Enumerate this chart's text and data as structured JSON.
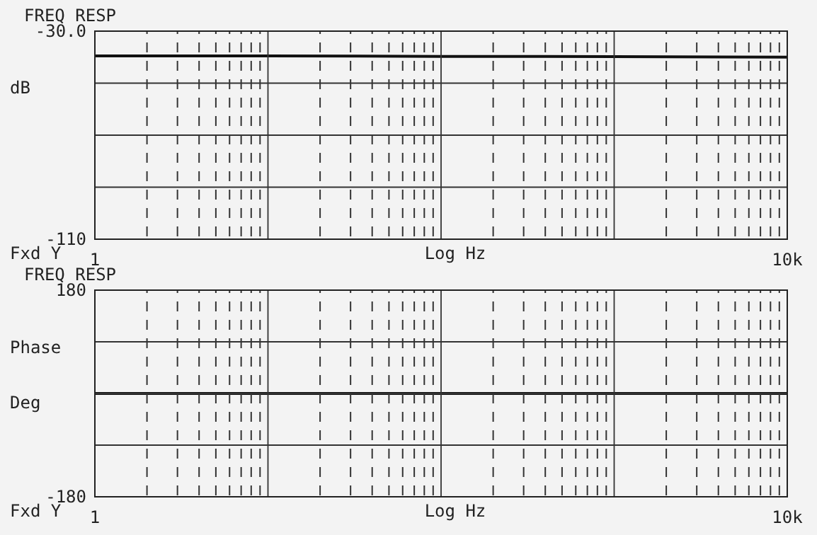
{
  "chart_data": [
    {
      "type": "line",
      "title": "FREQ RESP",
      "ylabel": "dB",
      "xlabel": "Log Hz",
      "annotations": [
        "Fxd Y"
      ],
      "log": "x",
      "grid": true,
      "line_style": "solid",
      "marker": "none",
      "xlim": [
        1,
        10000
      ],
      "xticks": [
        {
          "value": 1,
          "label": "1"
        },
        {
          "value": 2,
          "label": null
        },
        {
          "value": 3,
          "label": null
        },
        {
          "value": 4,
          "label": null
        },
        {
          "value": 5,
          "label": null
        },
        {
          "value": 6,
          "label": null
        },
        {
          "value": 7,
          "label": null
        },
        {
          "value": 8,
          "label": null
        },
        {
          "value": 9,
          "label": null
        },
        {
          "value": 10,
          "label": null
        },
        {
          "value": 20,
          "label": null
        },
        {
          "value": 30,
          "label": null
        },
        {
          "value": 40,
          "label": null
        },
        {
          "value": 50,
          "label": null
        },
        {
          "value": 60,
          "label": null
        },
        {
          "value": 70,
          "label": null
        },
        {
          "value": 80,
          "label": null
        },
        {
          "value": 90,
          "label": null
        },
        {
          "value": 100,
          "label": null
        },
        {
          "value": 200,
          "label": null
        },
        {
          "value": 300,
          "label": null
        },
        {
          "value": 400,
          "label": null
        },
        {
          "value": 500,
          "label": null
        },
        {
          "value": 600,
          "label": null
        },
        {
          "value": 700,
          "label": null
        },
        {
          "value": 800,
          "label": null
        },
        {
          "value": 900,
          "label": null
        },
        {
          "value": 1000,
          "label": null
        },
        {
          "value": 2000,
          "label": null
        },
        {
          "value": 3000,
          "label": null
        },
        {
          "value": 4000,
          "label": null
        },
        {
          "value": 5000,
          "label": null
        },
        {
          "value": 6000,
          "label": null
        },
        {
          "value": 7000,
          "label": null
        },
        {
          "value": 8000,
          "label": null
        },
        {
          "value": 9000,
          "label": null
        },
        {
          "value": 10000,
          "label": "10k"
        }
      ],
      "ylim": [
        -110,
        -30
      ],
      "yticks": [
        {
          "value": -30,
          "label": "-30.0"
        },
        {
          "value": -50,
          "label": null
        },
        {
          "value": -70,
          "label": null
        },
        {
          "value": -90,
          "label": null
        },
        -110
      ],
      "x": [
        1,
        10,
        100,
        1000,
        10000
      ],
      "series": [
        {
          "color": "#111111",
          "values": [
            -39.5,
            -39.5,
            -39.7,
            -39.8,
            -40
          ]
        }
      ]
    },
    {
      "type": "line",
      "title": "FREQ RESP",
      "ylabel": "Phase Deg",
      "xlabel": "Log Hz",
      "annotations": [
        "Fxd Y"
      ],
      "log": "x",
      "grid": true,
      "line_style": "solid",
      "marker": "none",
      "xlim": [
        1,
        10000
      ],
      "xticks": [
        {
          "value": 1,
          "label": "1"
        },
        {
          "value": 2,
          "label": null
        },
        {
          "value": 3,
          "label": null
        },
        {
          "value": 4,
          "label": null
        },
        {
          "value": 5,
          "label": null
        },
        {
          "value": 6,
          "label": null
        },
        {
          "value": 7,
          "label": null
        },
        {
          "value": 8,
          "label": null
        },
        {
          "value": 9,
          "label": null
        },
        {
          "value": 10,
          "label": null
        },
        {
          "value": 20,
          "label": null
        },
        {
          "value": 30,
          "label": null
        },
        {
          "value": 40,
          "label": null
        },
        {
          "value": 50,
          "label": null
        },
        {
          "value": 60,
          "label": null
        },
        {
          "value": 70,
          "label": null
        },
        {
          "value": 80,
          "label": null
        },
        {
          "value": 90,
          "label": null
        },
        {
          "value": 100,
          "label": null
        },
        {
          "value": 200,
          "label": null
        },
        {
          "value": 300,
          "label": null
        },
        {
          "value": 400,
          "label": null
        },
        {
          "value": 500,
          "label": null
        },
        {
          "value": 600,
          "label": null
        },
        {
          "value": 700,
          "label": null
        },
        {
          "value": 800,
          "label": null
        },
        {
          "value": 900,
          "label": null
        },
        {
          "value": 1000,
          "label": null
        },
        {
          "value": 2000,
          "label": null
        },
        {
          "value": 3000,
          "label": null
        },
        {
          "value": 4000,
          "label": null
        },
        {
          "value": 5000,
          "label": null
        },
        {
          "value": 6000,
          "label": null
        },
        {
          "value": 7000,
          "label": null
        },
        {
          "value": 8000,
          "label": null
        },
        {
          "value": 9000,
          "label": null
        },
        {
          "value": 10000,
          "label": "10k"
        }
      ],
      "ylim": [
        -180,
        180
      ],
      "yticks": [
        180,
        {
          "value": 90,
          "label": null
        },
        {
          "value": 0,
          "label": null
        },
        {
          "value": -90,
          "label": null
        },
        -180
      ],
      "x": [
        1,
        10,
        100,
        1000,
        10000
      ],
      "series": [
        {
          "color": "#111111",
          "values": [
            0,
            0,
            0,
            0,
            0
          ]
        }
      ]
    }
  ]
}
